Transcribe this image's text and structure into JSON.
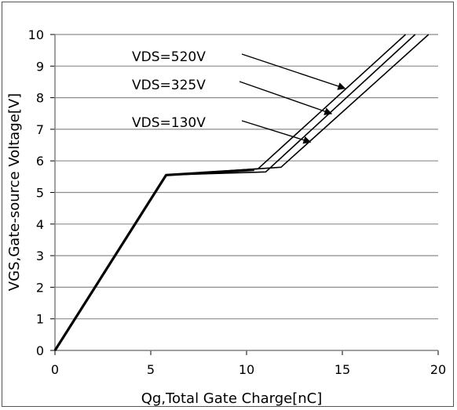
{
  "chart_data": {
    "type": "line",
    "title": "",
    "xlabel": "Qg,Total Gate Charge[nC]",
    "ylabel": "VGS,Gate-source Voltage[V]",
    "xlim": [
      0,
      20
    ],
    "ylim": [
      0,
      10
    ],
    "x_ticks": [
      "0",
      "5",
      "10",
      "15",
      "20"
    ],
    "y_ticks": [
      "0",
      "1",
      "2",
      "3",
      "4",
      "5",
      "6",
      "7",
      "8",
      "9",
      "10"
    ],
    "grid": "horizontal",
    "legend": "none",
    "series": [
      {
        "name": "VDS=520V",
        "points": [
          [
            0,
            0
          ],
          [
            5.8,
            5.55
          ],
          [
            10.6,
            5.75
          ],
          [
            18.3,
            10
          ]
        ]
      },
      {
        "name": "VDS=325V",
        "points": [
          [
            0,
            0
          ],
          [
            5.8,
            5.55
          ],
          [
            11.0,
            5.65
          ],
          [
            18.8,
            10
          ]
        ]
      },
      {
        "name": "VDS=130V",
        "points": [
          [
            0,
            0
          ],
          [
            5.8,
            5.55
          ],
          [
            11.8,
            5.8
          ],
          [
            19.5,
            10
          ]
        ]
      }
    ],
    "annotations": [
      {
        "text": "VDS=520V",
        "arrow_to": [
          15.1,
          8.3
        ]
      },
      {
        "text": "VDS=325V",
        "arrow_to": [
          14.4,
          7.5
        ]
      },
      {
        "text": "VDS=130V",
        "arrow_to": [
          13.3,
          6.6
        ]
      }
    ],
    "colors": {
      "line": "#000000",
      "grid": "#8c8c8c"
    }
  }
}
